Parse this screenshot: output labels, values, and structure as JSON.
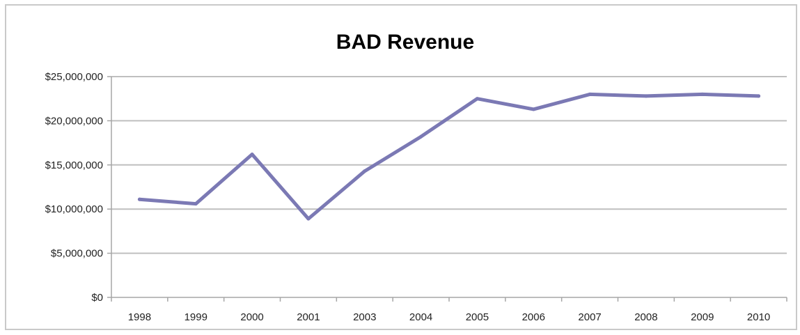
{
  "chart_data": {
    "type": "line",
    "title": "BAD Revenue",
    "xlabel": "",
    "ylabel": "",
    "categories": [
      "1998",
      "1999",
      "2000",
      "2001",
      "2003",
      "2004",
      "2005",
      "2006",
      "2007",
      "2008",
      "2009",
      "2010"
    ],
    "series": [
      {
        "values": [
          11100000,
          10600000,
          16200000,
          8900000,
          14300000,
          18200000,
          22500000,
          21300000,
          23000000,
          22800000,
          23000000,
          22800000
        ]
      }
    ],
    "ylim": [
      0,
      25000000
    ],
    "yticks": [
      0,
      5000000,
      10000000,
      15000000,
      20000000,
      25000000
    ],
    "ytick_labels": [
      "$0",
      "$5,000,000",
      "$10,000,000",
      "$15,000,000",
      "$20,000,000",
      "$25,000,000"
    ],
    "grid": true,
    "legend": "none",
    "colors": {
      "line": "#7b79b4",
      "grid": "#bfbfbf",
      "axis": "#a6a6a6",
      "frame": "#c9c9c9"
    }
  }
}
